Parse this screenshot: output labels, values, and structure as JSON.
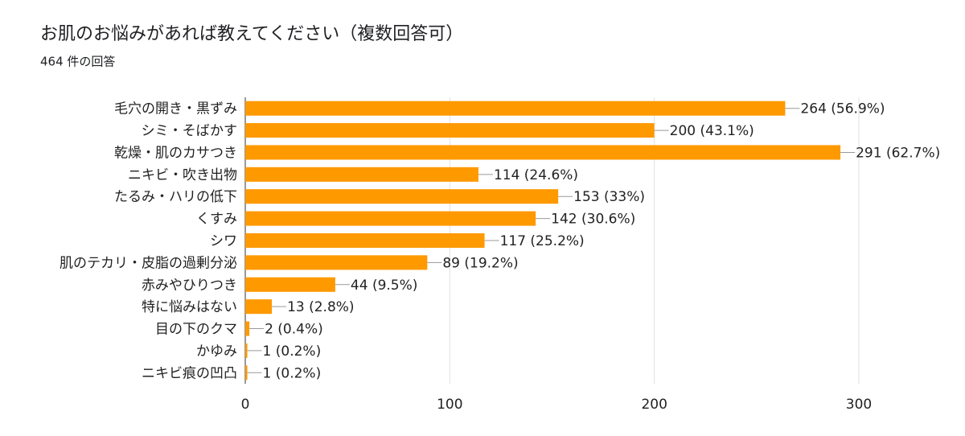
{
  "chart_data": {
    "type": "bar",
    "title": "お肌のお悩みがあれば教えてください（複数回答可）",
    "subtitle": "464 件の回答",
    "categories": [
      "毛穴の開き・黒ずみ",
      "シミ・そばかす",
      "乾燥・肌のカサつき",
      "ニキビ・吹き出物",
      "たるみ・ハリの低下",
      "くすみ",
      "シワ",
      "肌のテカリ・皮脂の過剰分泌",
      "赤みやひりつき",
      "特に悩みはない",
      "目の下のクマ",
      "かゆみ",
      "ニキビ痕の凹凸"
    ],
    "values": [
      264,
      200,
      291,
      114,
      153,
      142,
      117,
      89,
      44,
      13,
      2,
      1,
      1
    ],
    "value_labels": [
      "264 (56.9%)",
      "200 (43.1%)",
      "291 (62.7%)",
      "114 (24.6%)",
      "153 (33%)",
      "142 (30.6%)",
      "117 (25.2%)",
      "89 (19.2%)",
      "44 (9.5%)",
      "13 (2.8%)",
      "2 (0.4%)",
      "1 (0.2%)",
      "1 (0.2%)"
    ],
    "color": "#ff9900",
    "xlim": [
      0,
      300
    ],
    "xticks": [
      0,
      100,
      200,
      300
    ],
    "grid": true
  }
}
